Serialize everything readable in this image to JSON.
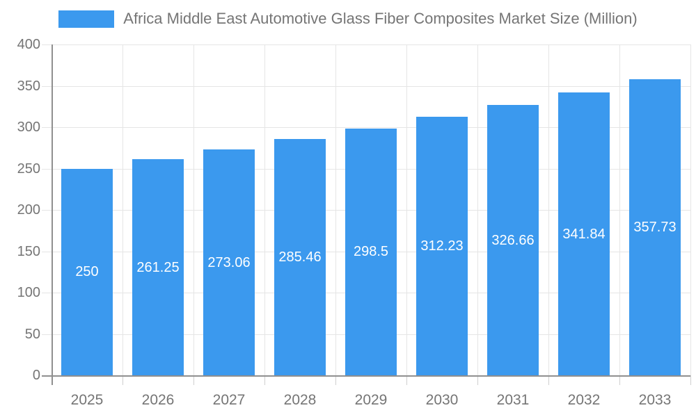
{
  "legend": {
    "label": "Africa Middle East Automotive Glass Fiber Composites Market Size (Million)",
    "swatch_color": "#3b99ee"
  },
  "chart_data": {
    "type": "bar",
    "title": "Africa Middle East Automotive Glass Fiber Composites Market Size (Million)",
    "categories": [
      "2025",
      "2026",
      "2027",
      "2028",
      "2029",
      "2030",
      "2031",
      "2032",
      "2033"
    ],
    "series": [
      {
        "name": "Africa Middle East Automotive Glass Fiber Composites Market Size (Million)",
        "values": [
          250,
          261.25,
          273.06,
          285.46,
          298.5,
          312.23,
          326.66,
          341.84,
          357.73
        ]
      }
    ],
    "value_labels": [
      "250",
      "261.25",
      "273.06",
      "285.46",
      "298.5",
      "312.23",
      "326.66",
      "341.84",
      "357.73"
    ],
    "xlabel": "",
    "ylabel": "",
    "ylim": [
      0,
      400
    ],
    "yticks": [
      "0",
      "50",
      "100",
      "150",
      "200",
      "250",
      "300",
      "350",
      "400"
    ],
    "grid": true,
    "legend_position": "top",
    "colors": {
      "bar": "#3b99ee",
      "grid": "#e5e5e5",
      "axis": "#8f8f8f",
      "tick_text": "#757575",
      "value_label_text": "#ffffff"
    }
  }
}
